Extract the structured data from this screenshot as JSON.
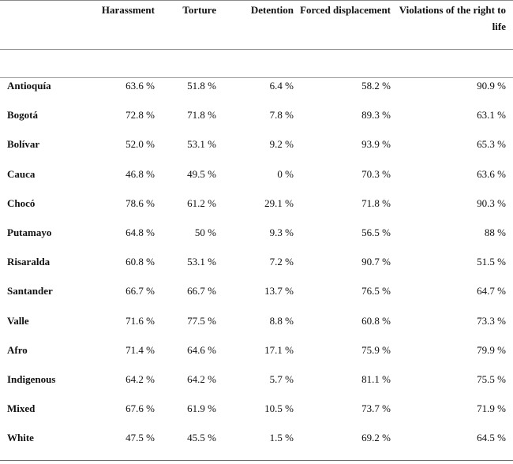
{
  "headers": [
    "Harassment",
    "Torture",
    "Detention",
    "Forced displacement",
    "Violations of the right to life"
  ],
  "rows": [
    {
      "label": "Antioquía",
      "values": [
        "63.6 %",
        "51.8 %",
        "6.4 %",
        "58.2 %",
        "90.9 %"
      ]
    },
    {
      "label": "Bogotá",
      "values": [
        "72.8 %",
        "71.8 %",
        "7.8 %",
        "89.3 %",
        "63.1 %"
      ]
    },
    {
      "label": "Bolívar",
      "values": [
        "52.0 %",
        "53.1 %",
        "9.2 %",
        "93.9 %",
        "65.3 %"
      ]
    },
    {
      "label": "Cauca",
      "values": [
        "46.8 %",
        "49.5 %",
        "0 %",
        "70.3 %",
        "63.6 %"
      ]
    },
    {
      "label": "Chocó",
      "values": [
        "78.6 %",
        "61.2 %",
        "29.1 %",
        "71.8 %",
        "90.3 %"
      ]
    },
    {
      "label": "Putamayo",
      "values": [
        "64.8 %",
        "50 %",
        "9.3 %",
        "56.5 %",
        "88 %"
      ]
    },
    {
      "label": "Risaralda",
      "values": [
        "60.8 %",
        "53.1 %",
        "7.2 %",
        "90.7 %",
        "51.5 %"
      ]
    },
    {
      "label": "Santander",
      "values": [
        "66.7 %",
        "66.7 %",
        "13.7 %",
        "76.5 %",
        "64.7 %"
      ]
    },
    {
      "label": "Valle",
      "values": [
        "71.6 %",
        "77.5 %",
        "8.8 %",
        "60.8 %",
        "73.3 %"
      ]
    },
    {
      "label": "Afro",
      "values": [
        "71.4 %",
        "64.6 %",
        "17.1 %",
        "75.9 %",
        "79.9 %"
      ]
    },
    {
      "label": "Indigenous",
      "values": [
        "64.2 %",
        "64.2 %",
        "5.7 %",
        "81.1 %",
        "75.5 %"
      ]
    },
    {
      "label": "Mixed",
      "values": [
        "67.6 %",
        "61.9 %",
        "10.5 %",
        "73.7 %",
        "71.9 %"
      ]
    },
    {
      "label": "White",
      "values": [
        "47.5 %",
        "45.5 %",
        "1.5 %",
        "69.2 %",
        "64.5 %"
      ]
    }
  ]
}
